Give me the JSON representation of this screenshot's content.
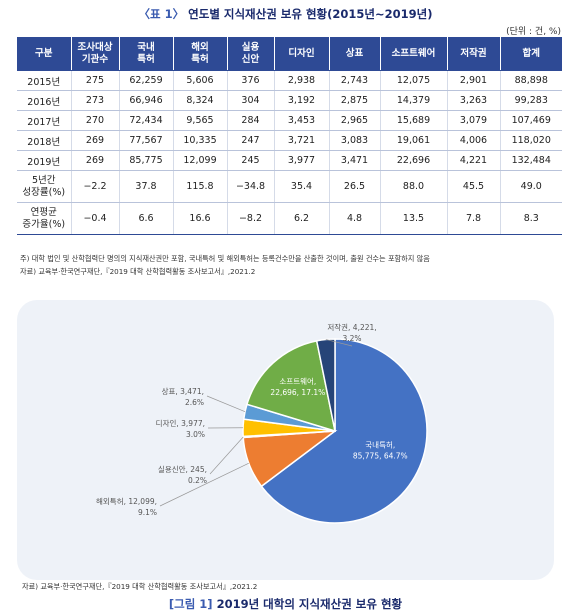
{
  "table": {
    "title_tag": "〈표 1〉",
    "title": "연도별 지식재산권 보유 현황(2015년~2019년)",
    "unit": "(단위 : 건, %)",
    "headers": [
      "구분",
      "조사대상\n기관수",
      "국내\n특허",
      "해외\n특허",
      "실용\n신안",
      "디자인",
      "상표",
      "소프트웨어",
      "저작권",
      "합계"
    ],
    "rows": [
      [
        "2015년",
        "275",
        "62,259",
        "5,606",
        "376",
        "2,938",
        "2,743",
        "12,075",
        "2,901",
        "88,898"
      ],
      [
        "2016년",
        "273",
        "66,946",
        "8,324",
        "304",
        "3,192",
        "2,875",
        "14,379",
        "3,263",
        "99,283"
      ],
      [
        "2017년",
        "270",
        "72,434",
        "9,565",
        "284",
        "3,453",
        "2,965",
        "15,689",
        "3,079",
        "107,469"
      ],
      [
        "2018년",
        "269",
        "77,567",
        "10,335",
        "247",
        "3,721",
        "3,083",
        "19,061",
        "4,006",
        "118,020"
      ],
      [
        "2019년",
        "269",
        "85,775",
        "12,099",
        "245",
        "3,977",
        "3,471",
        "22,696",
        "4,221",
        "132,484"
      ]
    ],
    "growth_rows": [
      [
        "5년간\n성장률(%)",
        "−2.2",
        "37.8",
        "115.8",
        "−34.8",
        "35.4",
        "26.5",
        "88.0",
        "45.5",
        "49.0"
      ],
      [
        "연평균\n증가율(%)",
        "−0.4",
        "6.6",
        "16.6",
        "−8.2",
        "6.2",
        "4.8",
        "13.5",
        "7.8",
        "8.3"
      ]
    ],
    "note": "주) 대학 법인 및 산학협력단 명의의 지식재산권만 포함, 국내특허 및 해외특허는 등록건수만을 산출한 것이며, 출원 건수는 포함하지 않음",
    "source": "자료) 교육부·한국연구재단,『2019 대학 산학협력활동 조사보고서』,2021.2"
  },
  "chart_data": {
    "type": "pie",
    "title": "2019년 대학의 지식재산권 보유 현황",
    "title_tag": "[그림 1]",
    "slices": [
      {
        "label": "국내특허",
        "value": 85775,
        "value_text": "85,775",
        "percent": 64.7,
        "color": "#4472c4"
      },
      {
        "label": "해외특허",
        "value": 12099,
        "value_text": "12,099",
        "percent": 9.1,
        "color": "#ed7d31"
      },
      {
        "label": "실용신안",
        "value": 245,
        "value_text": "245",
        "percent": 0.2,
        "color": "#a5a5a5"
      },
      {
        "label": "디자인",
        "value": 3977,
        "value_text": "3,977",
        "percent": 3.0,
        "color": "#ffc000"
      },
      {
        "label": "상표",
        "value": 3471,
        "value_text": "3,471",
        "percent": 2.6,
        "color": "#5b9bd5"
      },
      {
        "label": "소프트웨어",
        "value": 22696,
        "value_text": "22,696",
        "percent": 17.1,
        "color": "#70ad47"
      },
      {
        "label": "저작권",
        "value": 4221,
        "value_text": "4,221",
        "percent": 3.2,
        "color": "#264478"
      }
    ],
    "source": "자료) 교육부·한국연구재단,『2019 대학 산학협력활동 조사보고서』,2021.2"
  }
}
